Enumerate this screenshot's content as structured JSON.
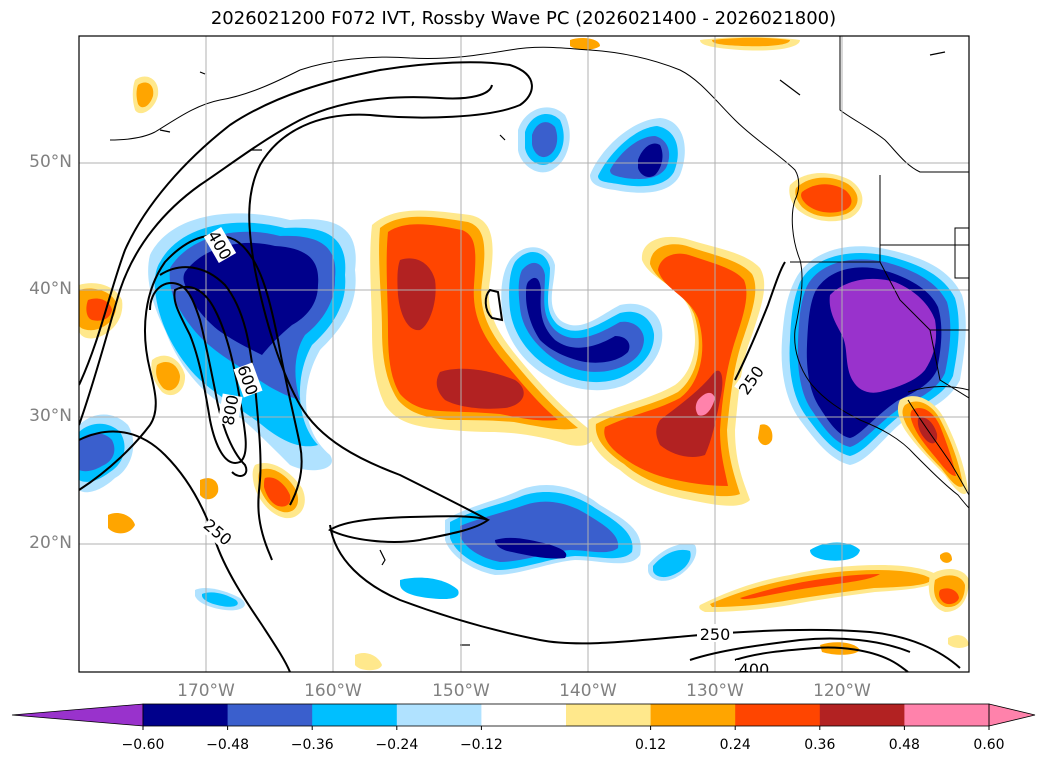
{
  "title": "2026021200 F072 IVT, Rossby Wave PC (2026021400 - 2026021800)",
  "lat_labels": [
    "50°N",
    "40°N",
    "30°N",
    "20°N"
  ],
  "lon_labels": [
    "170°W",
    "160°W",
    "150°W",
    "140°W",
    "130°W",
    "120°W"
  ],
  "contour_labels": [
    "400",
    "600",
    "800",
    "250",
    "250",
    "250",
    "400"
  ],
  "colorbar": {
    "ticks": [
      "−0.60",
      "−0.48",
      "−0.36",
      "−0.24",
      "−0.12",
      "0.12",
      "0.24",
      "0.36",
      "0.48",
      "0.60"
    ],
    "colors": [
      "#9932cc",
      "#00008b",
      "#3a5fcd",
      "#00bfff",
      "#b0e2ff",
      "#ffffff",
      "#ffe88c",
      "#ffa500",
      "#ff4500",
      "#b22222",
      "#ff82ab",
      "#ff82ab"
    ]
  },
  "colors": {
    "purple": "#9932cc",
    "navy": "#00008b",
    "blue": "#3a5fcd",
    "sky": "#00bfff",
    "pale": "#b0e2ff",
    "yellow": "#ffe88c",
    "orange": "#ffa500",
    "red": "#ff4500",
    "darkred": "#b22222",
    "pink": "#ff82ab"
  }
}
